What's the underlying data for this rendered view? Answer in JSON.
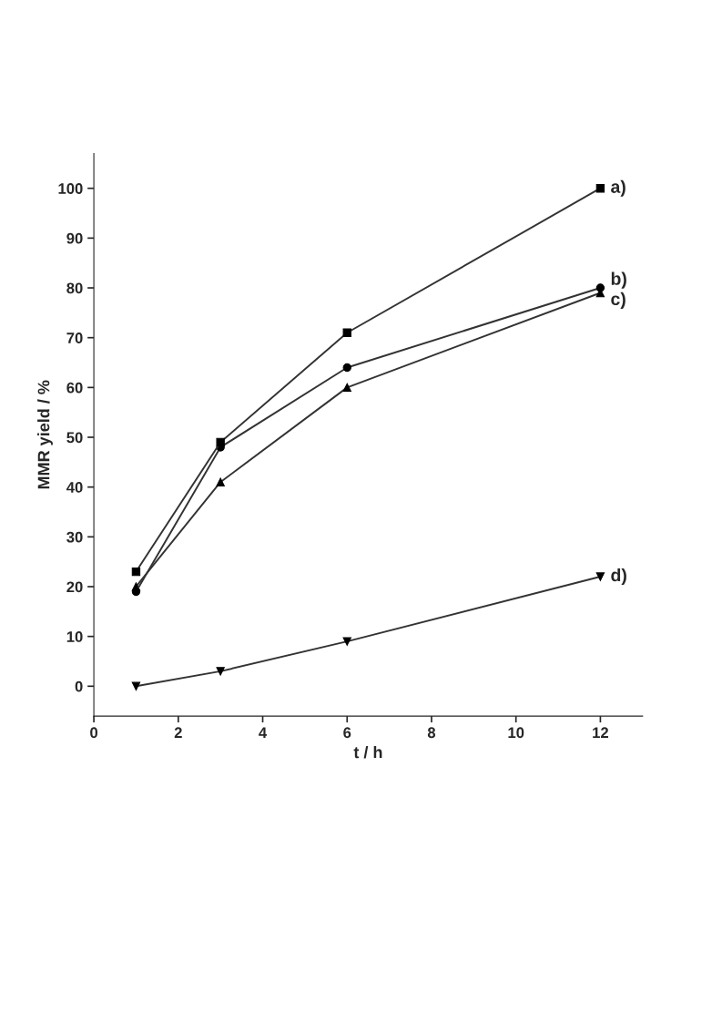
{
  "chart_data": {
    "type": "line",
    "xlabel": "t / h",
    "ylabel": "MMR yield / %",
    "x": [
      1,
      3,
      6,
      12
    ],
    "series": [
      {
        "name": "a)",
        "color": "#333333",
        "marker": "square",
        "values": [
          23,
          49,
          71,
          100
        ]
      },
      {
        "name": "b)",
        "color": "#333333",
        "marker": "circle",
        "values": [
          19,
          48,
          64,
          80
        ]
      },
      {
        "name": "c)",
        "color": "#333333",
        "marker": "triangle",
        "values": [
          20,
          41,
          60,
          79
        ]
      },
      {
        "name": "d)",
        "color": "#333333",
        "marker": "triangle_down",
        "values": [
          0,
          3,
          9,
          22
        ]
      }
    ],
    "xlim": [
      0,
      13
    ],
    "xticks": [
      0,
      2,
      4,
      6,
      8,
      10,
      12
    ],
    "ylim": [
      -6,
      107
    ],
    "yticks": [
      0,
      10,
      20,
      30,
      40,
      50,
      60,
      70,
      80,
      90,
      100
    ],
    "grid": false,
    "legend": false
  }
}
